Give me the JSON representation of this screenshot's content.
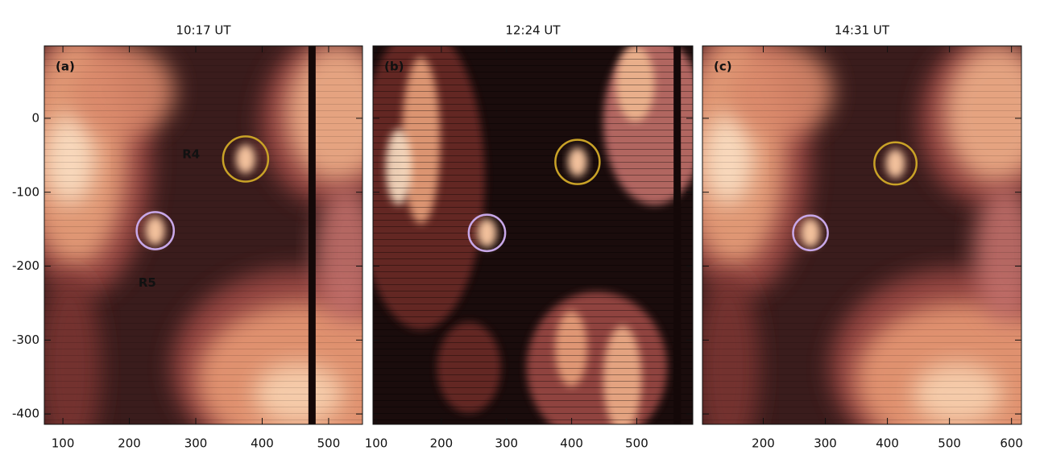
{
  "chart_data": [
    {
      "type": "image",
      "title": "10:17 UT",
      "panel_label": "(a)",
      "xlim": [
        72,
        551
      ],
      "ylim": [
        -414,
        98
      ],
      "xticks": [
        100,
        200,
        300,
        400,
        500
      ],
      "yticks": [
        -400,
        -300,
        -200,
        -100,
        0
      ],
      "ytick_labels": true,
      "circles": [
        {
          "x": 375,
          "y": -55,
          "r": 34,
          "color": "#c9a227"
        },
        {
          "x": 239,
          "y": -152,
          "r": 28,
          "color": "#c8a8e8"
        }
      ],
      "annotations": [
        {
          "text": "R4",
          "x": 293,
          "y": -49,
          "color": "#c9a227"
        },
        {
          "text": "R5",
          "x": 227,
          "y": -223,
          "color": "#c8a8e8"
        }
      ]
    },
    {
      "type": "image",
      "title": "12:24 UT",
      "panel_label": "(b)",
      "xlim": [
        95,
        586
      ],
      "ylim": [
        -414,
        98
      ],
      "xticks": [
        100,
        200,
        300,
        400,
        500
      ],
      "yticks": [
        -400,
        -300,
        -200,
        -100,
        0
      ],
      "ytick_labels": false,
      "circles": [
        {
          "x": 409,
          "y": -59,
          "r": 34,
          "color": "#c9a227"
        },
        {
          "x": 270,
          "y": -155,
          "r": 28,
          "color": "#c8a8e8"
        }
      ]
    },
    {
      "type": "image",
      "title": "14:31 UT",
      "panel_label": "(c)",
      "xlim": [
        102,
        616
      ],
      "ylim": [
        -414,
        98
      ],
      "xticks": [
        200,
        300,
        400,
        500,
        600
      ],
      "yticks": [
        -400,
        -300,
        -200,
        -100,
        0
      ],
      "ytick_labels": false,
      "circles": [
        {
          "x": 413,
          "y": -61,
          "r": 34,
          "color": "#c9a227"
        },
        {
          "x": 276,
          "y": -155,
          "r": 28,
          "color": "#c8a8e8"
        }
      ]
    }
  ]
}
